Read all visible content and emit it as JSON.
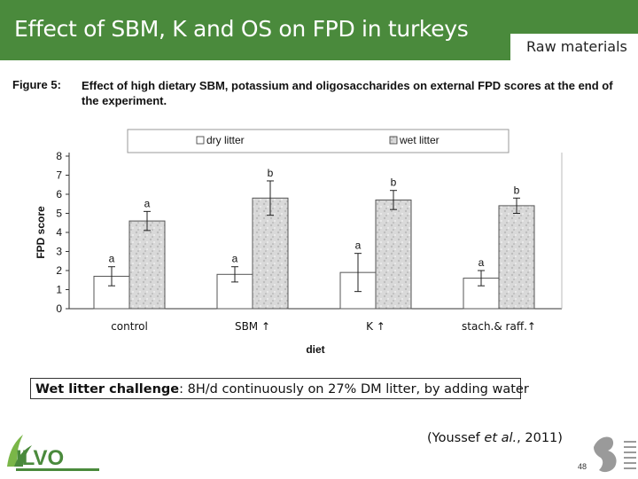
{
  "slide": {
    "title": "Effect of SBM, K and OS  on FPD in turkeys",
    "tag": "Raw materials",
    "figure_label": "Figure 5:",
    "figure_caption": "Effect of high dietary SBM, potassium and oligosaccharides on external FPD scores at the end of the experiment.",
    "note_bold": "Wet litter challenge",
    "note_rest": ": 8H/d continuously on  27% DM litter, by adding water",
    "citation_pre": "(Youssef ",
    "citation_em": "et al.",
    "citation_post": ", 2011)",
    "logo_text": "ILVO",
    "page_number": "48"
  },
  "chart_data": {
    "type": "bar",
    "title": "",
    "xlabel": "diet",
    "ylabel": "FPD score",
    "ylim": [
      0,
      8
    ],
    "yticks": [
      0,
      1,
      2,
      3,
      4,
      5,
      6,
      7,
      8
    ],
    "categories": [
      "control",
      "SBM ↑",
      "K ↑",
      "stach.& raff.↑"
    ],
    "legend_position": "top",
    "grid": false,
    "series": [
      {
        "name": "dry litter",
        "values": [
          1.7,
          1.8,
          1.9,
          1.6
        ],
        "errors": [
          0.5,
          0.4,
          1.0,
          0.4
        ],
        "labels": [
          "a",
          "a",
          "a",
          "a"
        ],
        "color": "#ffffff"
      },
      {
        "name": "wet litter",
        "values": [
          4.6,
          5.8,
          5.7,
          5.4
        ],
        "errors": [
          0.5,
          0.9,
          0.5,
          0.4
        ],
        "labels": [
          "a",
          "b",
          "b",
          "b"
        ],
        "color": "#d6d6d6"
      }
    ]
  }
}
